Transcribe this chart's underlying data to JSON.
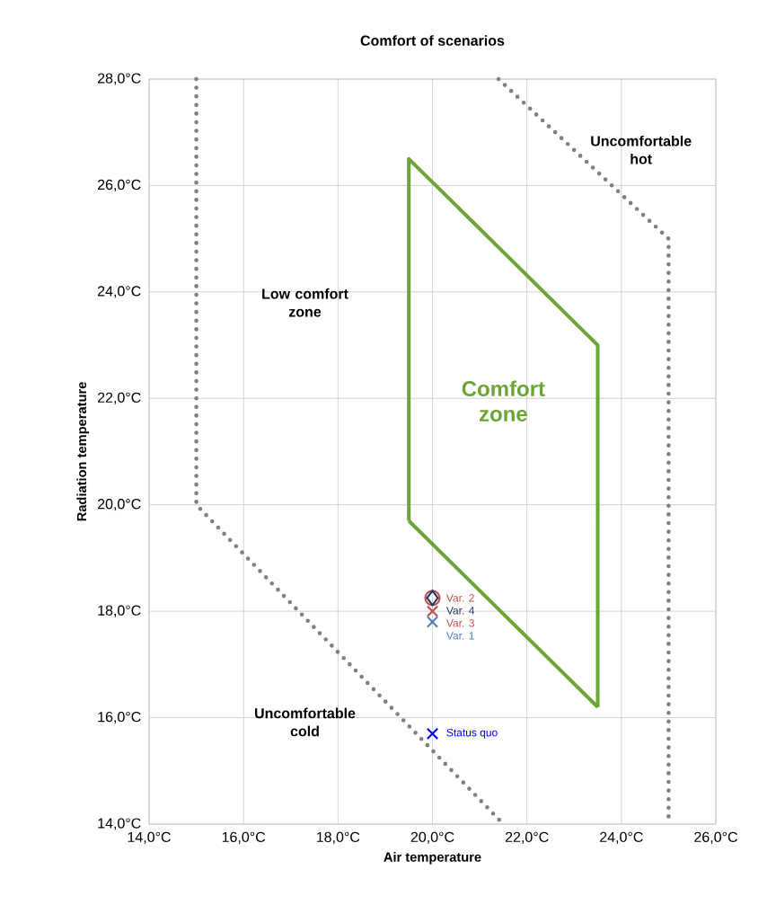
{
  "chart_data": {
    "type": "scatter",
    "title": "Comfort of scenarios",
    "xlabel": "Air temperature",
    "ylabel": "Radiation temperature",
    "xlim": [
      14,
      26
    ],
    "ylim": [
      14,
      28
    ],
    "xticks": [
      {
        "value": 14,
        "label": "14,0°C"
      },
      {
        "value": 16,
        "label": "16,0°C"
      },
      {
        "value": 18,
        "label": "18,0°C"
      },
      {
        "value": 20,
        "label": "20,0°C"
      },
      {
        "value": 22,
        "label": "22,0°C"
      },
      {
        "value": 24,
        "label": "24,0°C"
      },
      {
        "value": 26,
        "label": "26,0°C"
      }
    ],
    "yticks": [
      {
        "value": 14,
        "label": "14,0°C"
      },
      {
        "value": 16,
        "label": "16,0°C"
      },
      {
        "value": 18,
        "label": "18,0°C"
      },
      {
        "value": 20,
        "label": "20,0°C"
      },
      {
        "value": 22,
        "label": "22,0°C"
      },
      {
        "value": 24,
        "label": "24,0°C"
      },
      {
        "value": 26,
        "label": "26,0°C"
      },
      {
        "value": 28,
        "label": "28,0°C"
      }
    ],
    "grid": true,
    "series": [
      {
        "type": "line",
        "color": "#808080",
        "line_style": "dotted",
        "marker": "none",
        "x": [
          15,
          15,
          21.5
        ],
        "values": [
          28,
          20,
          14
        ]
      },
      {
        "type": "line",
        "color": "#808080",
        "line_style": "dotted",
        "marker": "none",
        "x": [
          21.4,
          25,
          25
        ],
        "values": [
          28,
          25,
          14
        ]
      },
      {
        "type": "line",
        "name": "Comfort zone",
        "color": "#6aa535",
        "line_style": "solid",
        "marker": "none",
        "x": [
          19.5,
          19.5,
          23.5,
          23.5
        ],
        "values": [
          19.7,
          26.5,
          23,
          16.2
        ]
      },
      {
        "type": "line",
        "color": "#6aa535",
        "line_style": "solid",
        "marker": "none",
        "x": [
          19.5,
          23.5
        ],
        "values": [
          19.7,
          16.2
        ]
      },
      {
        "name": "Var. 2",
        "color": "#c0504d",
        "marker": "circle",
        "x": [
          20
        ],
        "values": [
          18.25
        ]
      },
      {
        "name": "Var. 4",
        "color": "#1f3864",
        "marker": "diamond",
        "x": [
          20
        ],
        "values": [
          18.25
        ]
      },
      {
        "name": "Var. 3",
        "color": "#c0504d",
        "marker": "cross",
        "x": [
          20
        ],
        "values": [
          18.0
        ]
      },
      {
        "name": "Var. 1",
        "color": "#4f81bd",
        "marker": "cross",
        "x": [
          20
        ],
        "values": [
          17.8
        ]
      },
      {
        "name": "Status quo",
        "color": "#0000ff",
        "marker": "cross",
        "x": [
          20
        ],
        "values": [
          15.7
        ]
      }
    ],
    "annotations": [
      "Uncomfortable hot",
      "Low comfort zone",
      "Uncomfortable cold"
    ]
  }
}
